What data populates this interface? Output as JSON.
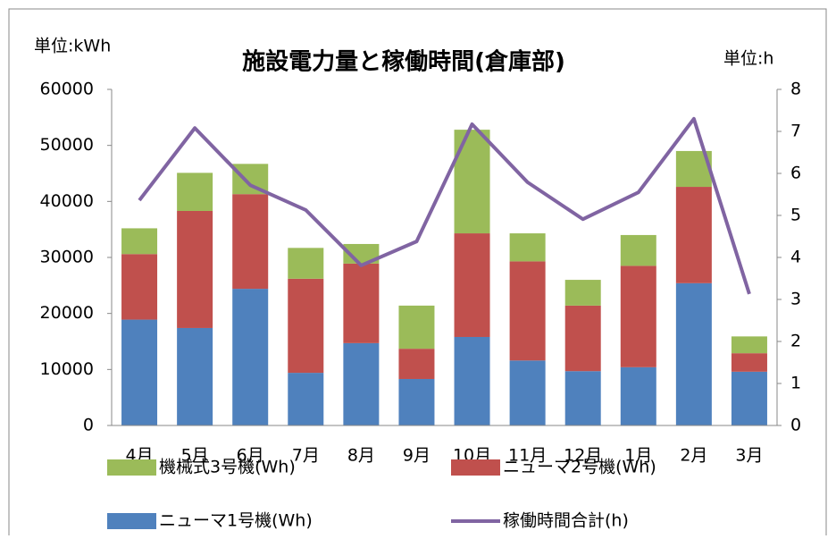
{
  "chart_data": {
    "type": "bar",
    "stacked": true,
    "title": "施設電力量と稼働時間(倉庫部)",
    "y_label": "単位:kWh",
    "y2_label": "単位:h",
    "categories": [
      "4月",
      "5月",
      "6月",
      "7月",
      "8月",
      "9月",
      "10月",
      "11月",
      "12月",
      "1月",
      "2月",
      "3月"
    ],
    "series": [
      {
        "name": "ニューマ1号機(Wh)",
        "color": "#4f81bd",
        "values": [
          18900,
          17400,
          24400,
          9400,
          14700,
          8300,
          15800,
          11600,
          9700,
          10400,
          25400,
          9600
        ]
      },
      {
        "name": "ニューマ2号機(Wh)",
        "color": "#c0504d",
        "values": [
          11700,
          20900,
          16900,
          16800,
          14200,
          5400,
          18500,
          17700,
          11700,
          18100,
          17200,
          3300
        ]
      },
      {
        "name": "機械式3号機(Wh)",
        "color": "#9bbb59",
        "values": [
          4600,
          6800,
          5400,
          5500,
          3500,
          7700,
          18500,
          5000,
          4600,
          5500,
          6400,
          3000
        ]
      },
      {
        "name": "稼働時間合計(h)",
        "color": "#8064a2",
        "type": "line",
        "axis": "y2",
        "values": [
          5.36,
          7.08,
          5.72,
          5.13,
          3.81,
          4.38,
          7.17,
          5.79,
          4.91,
          5.55,
          7.3,
          3.13
        ]
      }
    ],
    "ylim": [
      0,
      60000
    ],
    "yticks": [
      0,
      10000,
      20000,
      30000,
      40000,
      50000,
      60000
    ],
    "y2lim": [
      0,
      8
    ],
    "y2ticks": [
      0,
      1,
      2,
      3,
      4,
      5,
      6,
      7,
      8
    ],
    "legend": "bottom"
  }
}
